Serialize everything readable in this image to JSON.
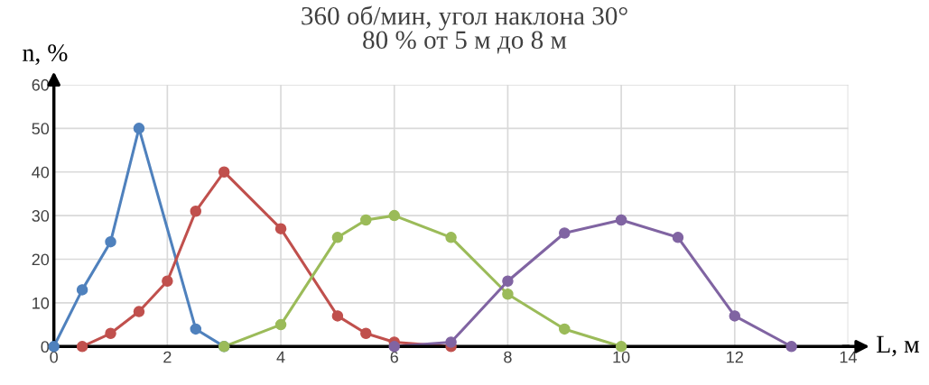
{
  "chart_data": {
    "type": "line",
    "title": "360 об/мин, угол наклона 30°\n80 % от 5 м до 8 м",
    "xlabel": "L, м",
    "ylabel": "n, %",
    "xlim": [
      0,
      14
    ],
    "xticks": [
      0,
      2,
      4,
      6,
      8,
      10,
      12,
      14
    ],
    "ylim": [
      0,
      60
    ],
    "yticks": [
      0,
      10,
      20,
      30,
      40,
      50,
      60
    ],
    "grid": true,
    "legend": false,
    "marker": "circle",
    "line_style": "solid",
    "series": [
      {
        "color": "#4f81bd",
        "x": [
          0,
          0.5,
          1,
          1.5,
          2.5,
          3
        ],
        "values": [
          0,
          13,
          24,
          50,
          4,
          0
        ]
      },
      {
        "color": "#c0504d",
        "x": [
          0.5,
          1,
          1.5,
          2,
          2.5,
          3,
          4,
          5,
          5.5,
          6,
          7
        ],
        "values": [
          0,
          3,
          8,
          15,
          31,
          40,
          27,
          7,
          3,
          1,
          0
        ]
      },
      {
        "color": "#9bbb59",
        "x": [
          3,
          4,
          5,
          5.5,
          6,
          7,
          8,
          9,
          10
        ],
        "values": [
          0,
          5,
          25,
          29,
          30,
          25,
          12,
          4,
          0
        ]
      },
      {
        "color": "#8064a2",
        "x": [
          6,
          7,
          8,
          9,
          10,
          11,
          12,
          13
        ],
        "values": [
          0,
          1,
          15,
          26,
          29,
          25,
          7,
          0
        ]
      }
    ]
  }
}
